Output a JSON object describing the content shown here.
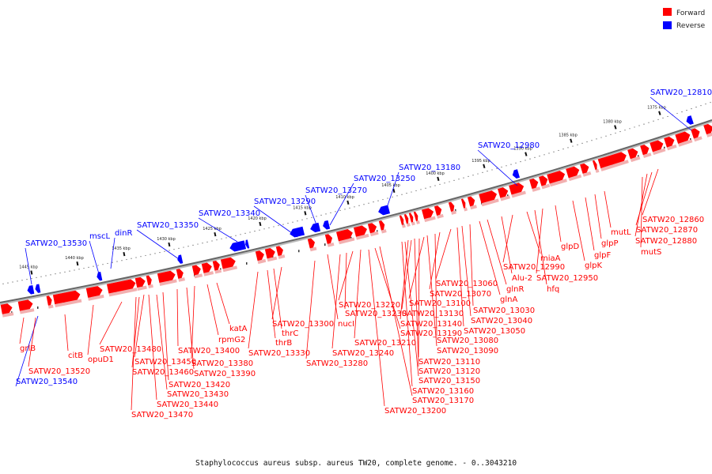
{
  "colors": {
    "forward": "#ff0000",
    "forward_shadow": "#f2b0b0",
    "reverse": "#0000ff",
    "backbone": "#666666"
  },
  "legend": [
    {
      "label": "Forward",
      "color": "#ff0000"
    },
    {
      "label": "Reverse",
      "color": "#0000ff"
    }
  ],
  "caption": "Staphylococcus aureus subsp. aureus TW20, complete genome. - 0..3043210",
  "ticks": [
    "1445 kbp",
    "1440 kbp",
    "1435 kbp",
    "1430 kbp",
    "1425 kbp",
    "1420 kbp",
    "1415 kbp",
    "1410 kbp",
    "1405 kbp",
    "1400 kbp",
    "1395 kbp",
    "1390 kbp",
    "1385 kbp",
    "1380 kbp",
    "1375 kbp"
  ],
  "reverse_labels": [
    "SATW20_13530",
    "SATW20_13540",
    "mscL",
    "dinR",
    "SATW20_13350",
    "SATW20_13340",
    "SATW20_13290",
    "SATW20_13270",
    "SATW20_13250",
    "SATW20_13180",
    "SATW20_12980",
    "SATW20_12810"
  ],
  "forward_labels": [
    "grlB",
    "SATW20_13520",
    "citB",
    "opuD1",
    "SATW20_13480",
    "SATW20_13470",
    "SATW20_13460",
    "SATW20_13450",
    "SATW20_13440",
    "SATW20_13430",
    "SATW20_13420",
    "SATW20_13400",
    "SATW20_13390",
    "SATW20_13380",
    "rpmG2",
    "katA",
    "SATW20_13330",
    "thrB",
    "thrC",
    "SATW20_13300",
    "SATW20_13280",
    "nucI",
    "SATW20_13240",
    "SATW20_13230",
    "SATW20_13220",
    "SATW20_13210",
    "SATW20_13200",
    "SATW20_13190",
    "SATW20_13170",
    "SATW20_13160",
    "SATW20_13150",
    "SATW20_13140",
    "SATW20_13130",
    "SATW20_13120",
    "SATW20_13110",
    "SATW20_13100",
    "SATW20_13090",
    "SATW20_13080",
    "SATW20_13070",
    "SATW20_13060",
    "SATW20_13050",
    "SATW20_13040",
    "SATW20_13030",
    "glnA",
    "glnR",
    "Alu-2",
    "SATW20_12990",
    "miaA",
    "hfq",
    "SATW20_12950",
    "glpD",
    "glpK",
    "glpF",
    "glpP",
    "mutL",
    "mutS",
    "SATW20_12880",
    "SATW20_12870",
    "SATW20_12860"
  ]
}
